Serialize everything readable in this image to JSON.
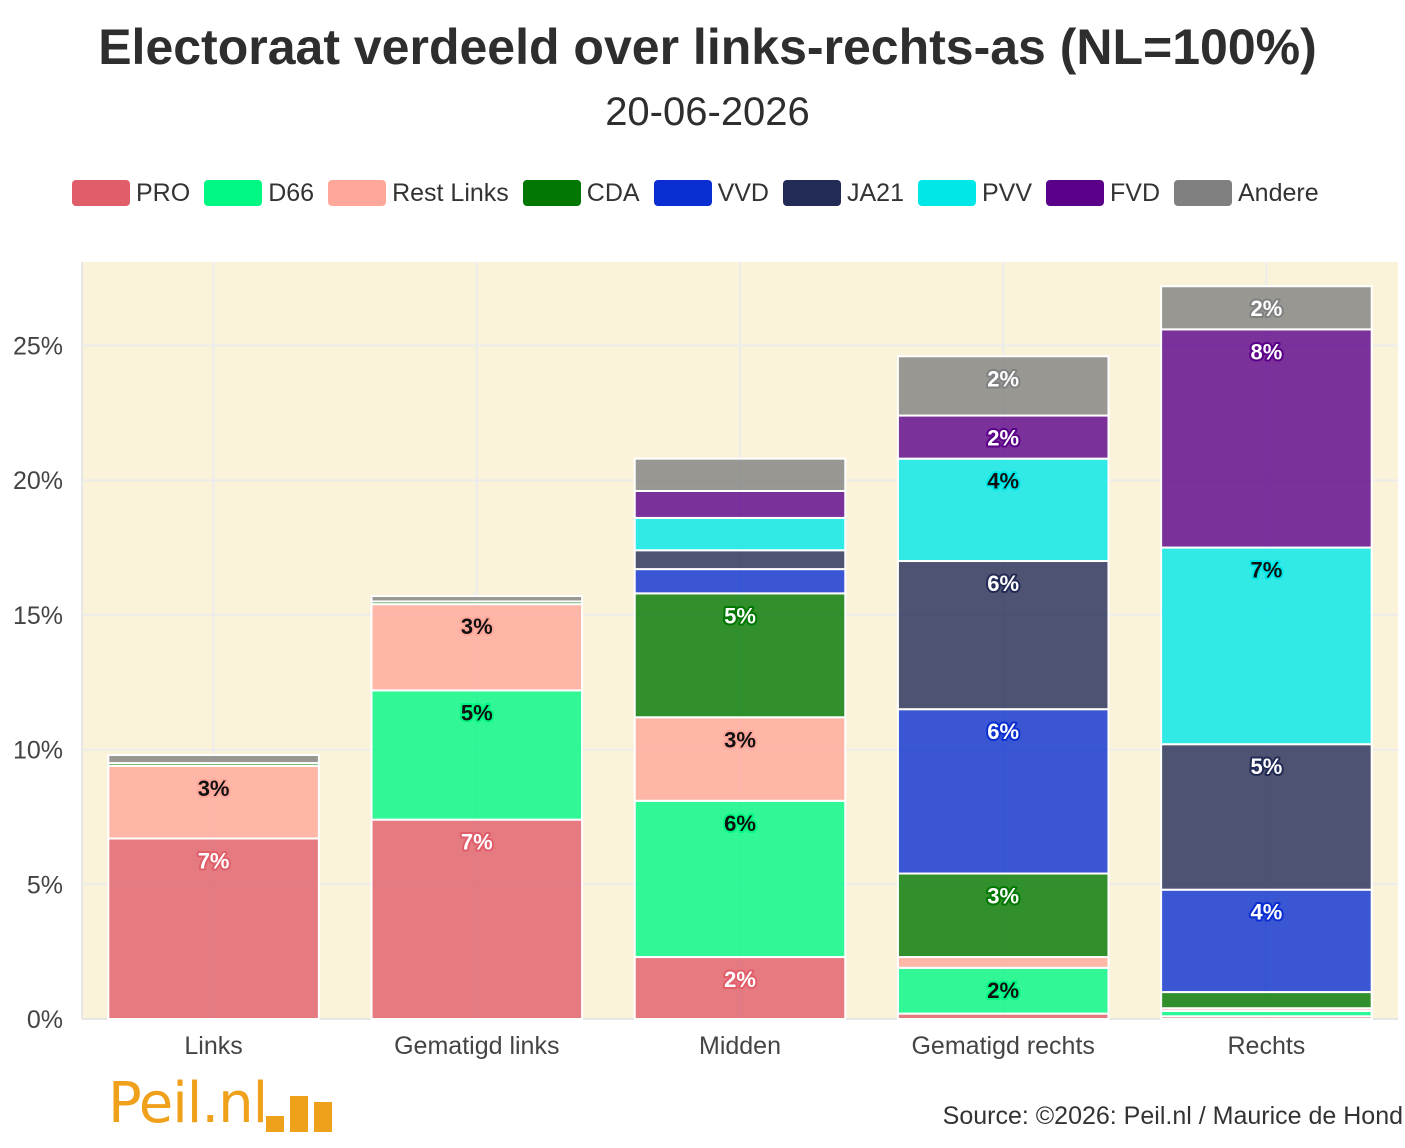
{
  "title": "Electoraat verdeeld over links-rechts-as (NL=100%)",
  "subtitle": "20-06-2026",
  "source": "Source: ©2026: Peil.nl / Maurice de Hond",
  "logo_text": "Peil.nl",
  "chart_data": {
    "type": "bar",
    "stacked": true,
    "title": "Electoraat verdeeld over links-rechts-as (NL=100%)",
    "subtitle": "20-06-2026",
    "categories": [
      "Links",
      "Gematigd links",
      "Midden",
      "Gematigd rechts",
      "Rechts"
    ],
    "y_ticks": [
      "0%",
      "5%",
      "10%",
      "15%",
      "20%",
      "25%"
    ],
    "y_tick_values": [
      0,
      5,
      10,
      15,
      20,
      25
    ],
    "ylim": [
      0,
      28.1
    ],
    "legend_position": "top",
    "grid": true,
    "series": [
      {
        "name": "PRO",
        "color": "#e05d6a",
        "values": [
          6.7,
          7.4,
          2.3,
          0.2,
          0.1
        ],
        "labels": [
          "7%",
          "7%",
          "2%",
          "",
          ""
        ]
      },
      {
        "name": "D66",
        "color": "#00f784",
        "values": [
          0.0,
          4.8,
          5.8,
          1.7,
          0.2
        ],
        "labels": [
          "",
          "5%",
          "6%",
          "2%",
          ""
        ]
      },
      {
        "name": "Rest Links",
        "color": "#ffa79a",
        "values": [
          2.7,
          3.2,
          3.1,
          0.4,
          0.1
        ],
        "labels": [
          "3%",
          "3%",
          "3%",
          "",
          ""
        ]
      },
      {
        "name": "CDA",
        "color": "#007700",
        "values": [
          0.1,
          0.1,
          4.6,
          3.1,
          0.6
        ],
        "labels": [
          "",
          "",
          "5%",
          "3%",
          ""
        ]
      },
      {
        "name": "VVD",
        "color": "#0a2ed1",
        "values": [
          0.0,
          0.0,
          0.9,
          6.1,
          3.8
        ],
        "labels": [
          "",
          "",
          "",
          "6%",
          "4%"
        ]
      },
      {
        "name": "JA21",
        "color": "#222b55",
        "values": [
          0.0,
          0.0,
          0.7,
          5.5,
          5.4
        ],
        "labels": [
          "",
          "",
          "",
          "6%",
          "5%"
        ]
      },
      {
        "name": "PVV",
        "color": "#00e7e7",
        "values": [
          0.0,
          0.0,
          1.2,
          3.8,
          7.3
        ],
        "labels": [
          "",
          "",
          "",
          "4%",
          "7%"
        ]
      },
      {
        "name": "FVD",
        "color": "#5a0089",
        "values": [
          0.0,
          0.0,
          1.0,
          1.6,
          8.1
        ],
        "labels": [
          "",
          "",
          "",
          "2%",
          "8%"
        ]
      },
      {
        "name": "Andere",
        "color": "#808080",
        "values": [
          0.3,
          0.2,
          1.2,
          2.2,
          1.6
        ],
        "labels": [
          "",
          "",
          "",
          "2%",
          "2%"
        ]
      }
    ]
  }
}
